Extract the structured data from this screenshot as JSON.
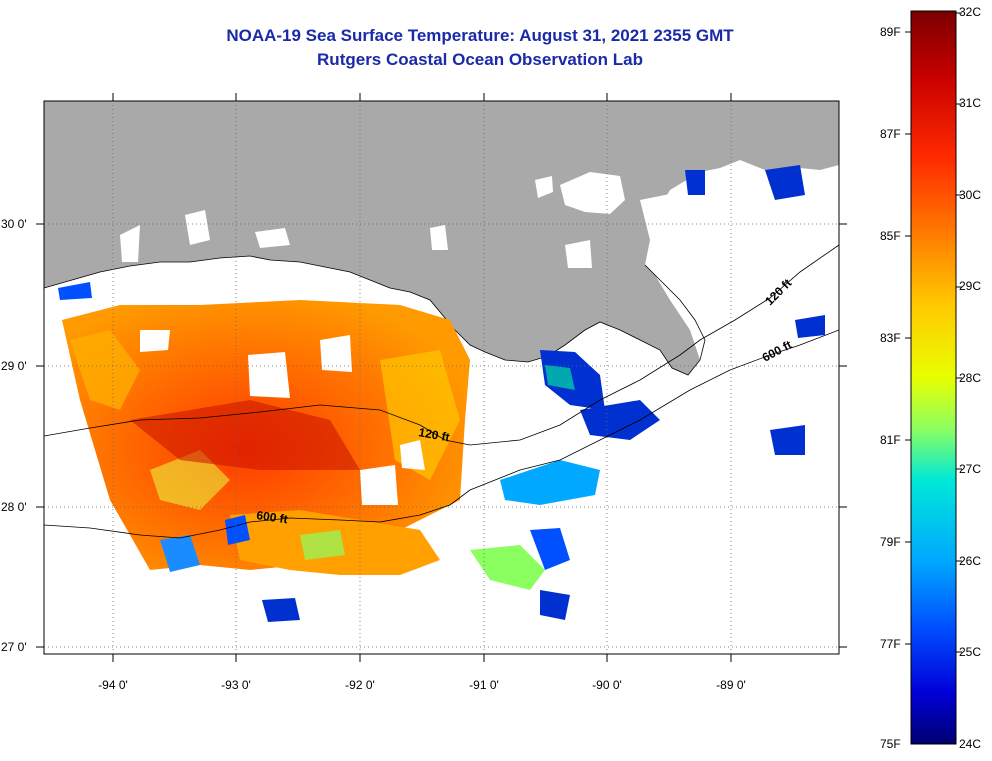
{
  "title": {
    "line1": "NOAA-19 Sea Surface Temperature:  August 31, 2021 2355 GMT",
    "line2": "Rutgers Coastal Ocean Observation Lab"
  },
  "map": {
    "lon_labels": [
      "-94 0'",
      "-93 0'",
      "-92 0'",
      "-91 0'",
      "-90 0'",
      "-89 0'"
    ],
    "lat_labels": [
      "30 0'",
      "29 0'",
      "28 0'",
      "27 0'"
    ],
    "contours": [
      "120 ft",
      "600 ft",
      "120 ft",
      "600 ft"
    ],
    "colors": {
      "land": "#a9a9a9",
      "no_data": "#ffffff",
      "grid": "#000000"
    }
  },
  "colorbar": {
    "celsius": [
      "32C",
      "31C",
      "30C",
      "29C",
      "28C",
      "27C",
      "26C",
      "25C",
      "24C"
    ],
    "fahrenheit": [
      "89F",
      "87F",
      "85F",
      "83F",
      "81F",
      "79F",
      "77F",
      "75F"
    ],
    "gradient": [
      "#7a0000",
      "#c80000",
      "#ff2a00",
      "#ff7800",
      "#ffc800",
      "#e8ff00",
      "#8cff60",
      "#00e8d8",
      "#00a8ff",
      "#0050ff",
      "#0000d8",
      "#000070"
    ]
  }
}
